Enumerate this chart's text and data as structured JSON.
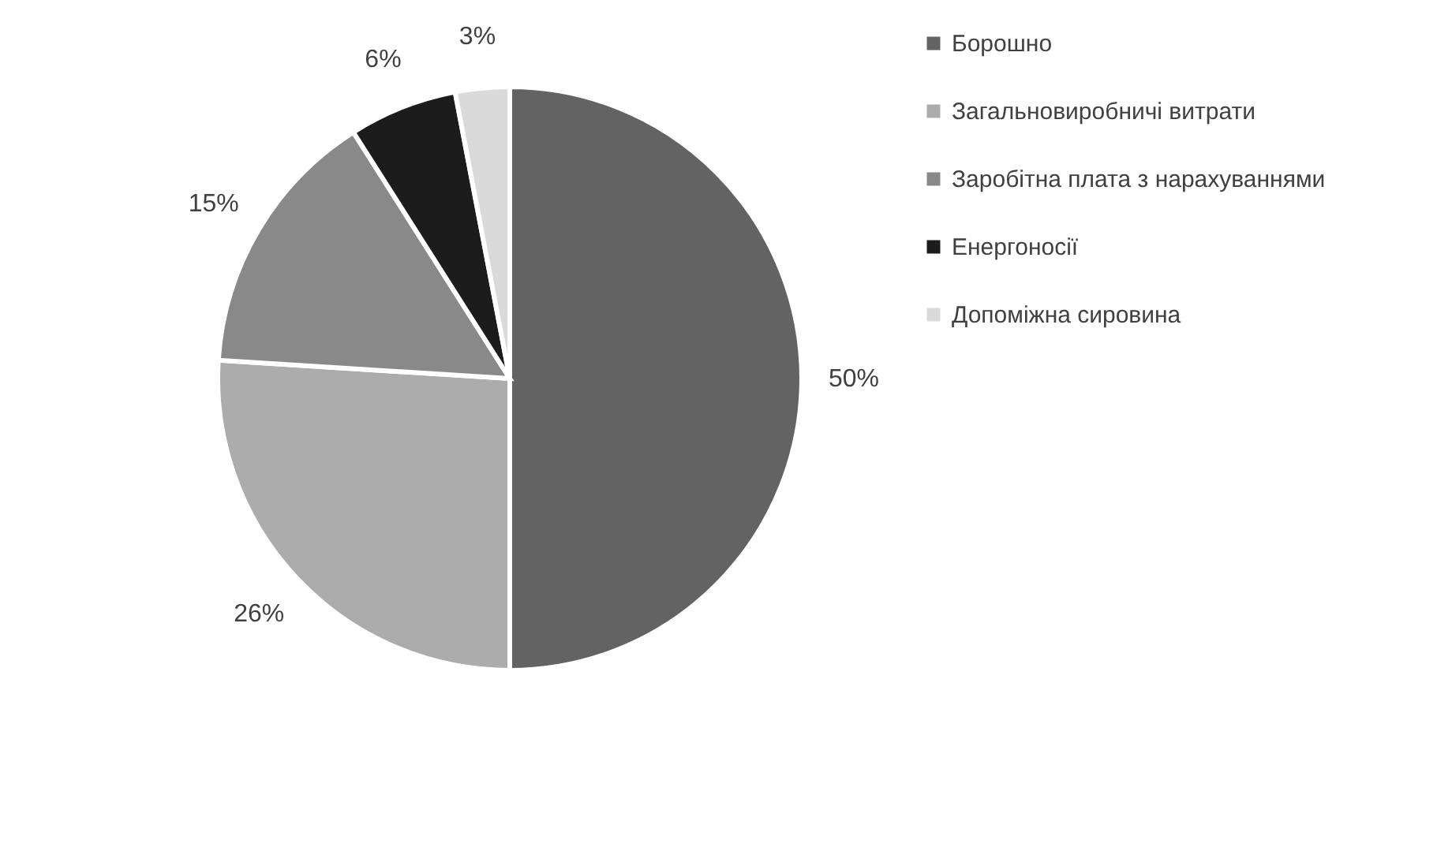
{
  "chart_data": {
    "type": "pie",
    "categories": [
      "Борошно",
      "Загальновиробничі витрати",
      "Заробітна плата з нарахуваннями",
      "Енергоносії",
      "Допоміжна сировина"
    ],
    "values": [
      50,
      26,
      15,
      6,
      3
    ],
    "colors": [
      "#636363",
      "#acacac",
      "#898989",
      "#1c1c1c",
      "#dadada"
    ],
    "value_labels": [
      "50%",
      "26%",
      "15%",
      "6%",
      "3%"
    ],
    "legend": "right"
  }
}
